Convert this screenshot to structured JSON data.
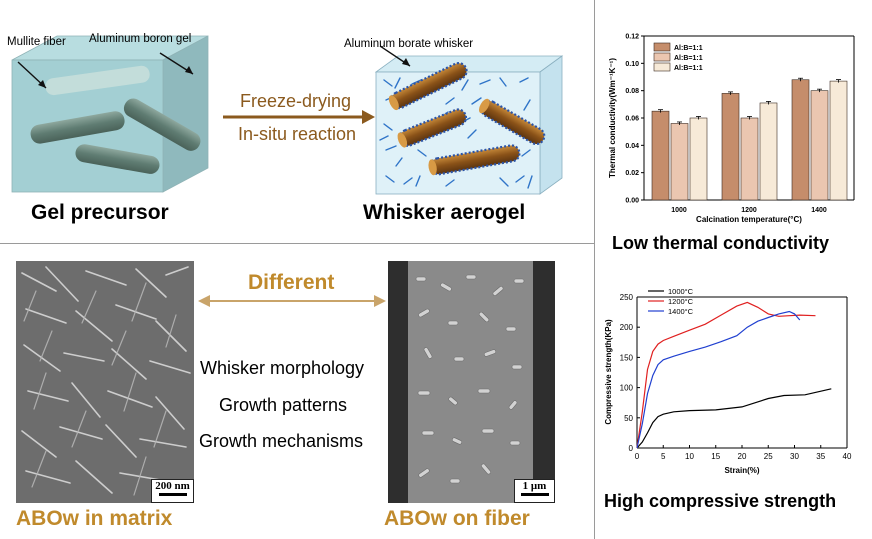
{
  "top_left": {
    "mullite_label": "Mullite fiber",
    "gel_label": "Aluminum boron gel",
    "whisker_label": "Aluminum borate whisker",
    "process_1": "Freeze-drying",
    "process_2": "In-situ reaction",
    "caption_left": "Gel precursor",
    "caption_right": "Whisker aerogel"
  },
  "bottom_left": {
    "different": "Different",
    "aspects": [
      "Whisker morphology",
      "Growth patterns",
      "Growth mechanisms"
    ],
    "scale_left": "200 nm",
    "scale_right": "1 μm",
    "caption_left": "ABOw in matrix",
    "caption_right": "ABOw on fiber"
  },
  "colors": {
    "accent_brown": "#8b5a1e",
    "accent_gold": "#c08a2c",
    "red": "#e02020",
    "blue": "#2040d0"
  },
  "chart_data": [
    {
      "type": "bar",
      "title": "",
      "caption": "Low thermal conductivity",
      "xlabel": "Calcination temperature(°C)",
      "ylabel": "Thermal conductivity(Wm⁻¹K⁻¹)",
      "categories": [
        "1000",
        "1200",
        "1400"
      ],
      "ylim": [
        0,
        0.12
      ],
      "yticks": [
        "0.00",
        "0.02",
        "0.04",
        "0.06",
        "0.08",
        "0.10",
        "0.12"
      ],
      "legend_position": "top-left",
      "series": [
        {
          "name": "Al:B=1:1",
          "color": "#c58d6b",
          "values": [
            0.065,
            0.078,
            0.088
          ]
        },
        {
          "name": "Al:B=1:1",
          "color": "#ebc6b0",
          "values": [
            0.056,
            0.06,
            0.08
          ]
        },
        {
          "name": "Al:B=1:1",
          "color": "#f7ead8",
          "values": [
            0.06,
            0.071,
            0.087
          ]
        }
      ]
    },
    {
      "type": "line",
      "title": "",
      "caption": "High compressive strength",
      "xlabel": "Strain(%)",
      "ylabel": "Compressive strength(KPa)",
      "xlim": [
        0,
        40
      ],
      "ylim": [
        0,
        250
      ],
      "xticks": [
        "0",
        "5",
        "10",
        "15",
        "20",
        "25",
        "30",
        "35",
        "40"
      ],
      "yticks": [
        "0",
        "50",
        "100",
        "150",
        "200",
        "250"
      ],
      "legend_position": "top-left",
      "series": [
        {
          "name": "1000°C",
          "color": "#000000",
          "x": [
            0,
            1,
            2,
            3,
            4,
            5,
            7,
            10,
            15,
            20,
            25,
            28,
            32,
            37
          ],
          "y": [
            0,
            10,
            25,
            42,
            52,
            56,
            60,
            62,
            63,
            68,
            82,
            87,
            88,
            98
          ]
        },
        {
          "name": "1200°C",
          "color": "#e02020",
          "x": [
            0,
            1,
            2,
            3,
            4,
            5,
            7,
            10,
            13,
            16,
            19,
            21,
            23,
            25,
            27,
            29,
            31,
            34
          ],
          "y": [
            0,
            60,
            130,
            160,
            172,
            178,
            185,
            195,
            205,
            220,
            235,
            241,
            233,
            222,
            218,
            219,
            220,
            219
          ]
        },
        {
          "name": "1400°C",
          "color": "#2040d0",
          "x": [
            0,
            1,
            2,
            3,
            4,
            5,
            7,
            10,
            13,
            16,
            19,
            21,
            23,
            25,
            27,
            29,
            30,
            31
          ],
          "y": [
            0,
            40,
            90,
            120,
            138,
            146,
            152,
            160,
            167,
            176,
            186,
            200,
            210,
            216,
            222,
            226,
            222,
            212
          ]
        }
      ]
    }
  ]
}
